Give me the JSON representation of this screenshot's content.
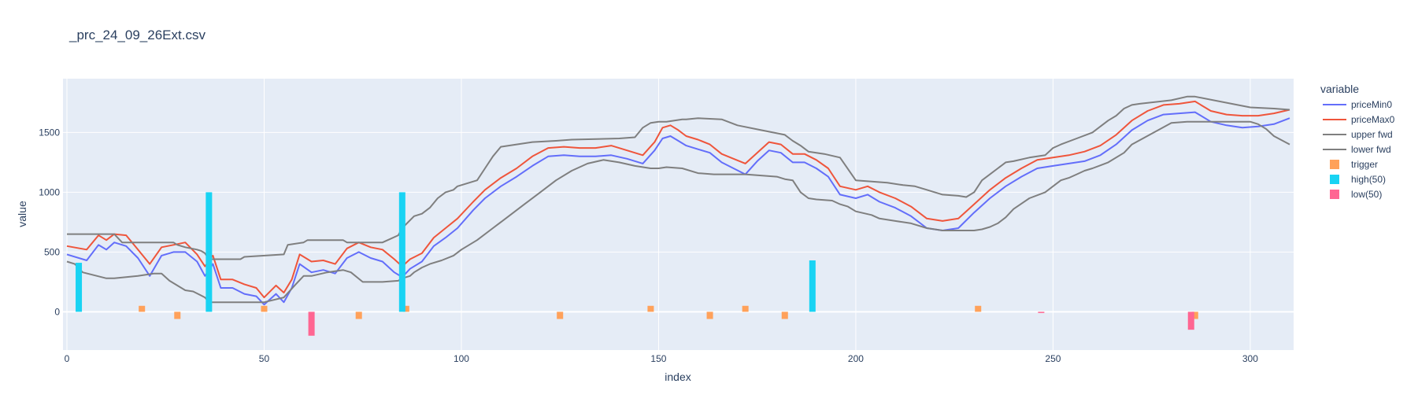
{
  "chart_data": {
    "type": "line",
    "title": "_prc_24_09_26Ext.csv",
    "xlabel": "index",
    "ylabel": "value",
    "xlim": [
      -1,
      311
    ],
    "ylim": [
      -320,
      1950
    ],
    "xticks": [
      0,
      50,
      100,
      150,
      200,
      250,
      300
    ],
    "yticks": [
      0,
      500,
      1000,
      1500
    ],
    "grid": true,
    "legend_title": "variable",
    "legend_position": "right",
    "series": [
      {
        "name": "priceMin0",
        "mark": "line",
        "color": "#636efa",
        "x": [
          0,
          5,
          8,
          10,
          12,
          15,
          18,
          21,
          24,
          27,
          30,
          33,
          35,
          37,
          39,
          42,
          45,
          48,
          50,
          53,
          55,
          57,
          59,
          62,
          65,
          68,
          71,
          74,
          77,
          80,
          83,
          85,
          87,
          90,
          93,
          96,
          99,
          103,
          106,
          110,
          114,
          118,
          122,
          126,
          130,
          134,
          138,
          142,
          146,
          149,
          151,
          153,
          155,
          157,
          160,
          163,
          166,
          169,
          172,
          175,
          178,
          181,
          184,
          187,
          190,
          193,
          196,
          200,
          203,
          206,
          210,
          214,
          218,
          222,
          226,
          230,
          234,
          238,
          242,
          246,
          250,
          254,
          258,
          262,
          266,
          270,
          274,
          278,
          282,
          286,
          290,
          294,
          298,
          302,
          306,
          310
        ],
        "y": [
          480,
          430,
          560,
          520,
          580,
          550,
          450,
          300,
          470,
          500,
          500,
          420,
          300,
          400,
          200,
          200,
          150,
          130,
          60,
          150,
          80,
          200,
          400,
          330,
          350,
          320,
          450,
          500,
          450,
          420,
          330,
          290,
          360,
          420,
          550,
          620,
          700,
          850,
          950,
          1050,
          1130,
          1220,
          1300,
          1310,
          1300,
          1300,
          1310,
          1280,
          1240,
          1350,
          1450,
          1470,
          1430,
          1390,
          1360,
          1330,
          1250,
          1200,
          1150,
          1260,
          1350,
          1330,
          1250,
          1250,
          1200,
          1130,
          980,
          950,
          980,
          920,
          870,
          800,
          700,
          680,
          700,
          830,
          950,
          1050,
          1130,
          1200,
          1220,
          1240,
          1260,
          1310,
          1400,
          1520,
          1600,
          1650,
          1660,
          1670,
          1590,
          1560,
          1540,
          1550,
          1570,
          1620
        ]
      },
      {
        "name": "priceMax0",
        "mark": "line",
        "color": "#ef553b",
        "x": [
          0,
          5,
          8,
          10,
          12,
          15,
          18,
          21,
          24,
          27,
          30,
          33,
          35,
          37,
          39,
          42,
          45,
          48,
          50,
          53,
          55,
          57,
          59,
          62,
          65,
          68,
          71,
          74,
          77,
          80,
          83,
          85,
          87,
          90,
          93,
          96,
          99,
          103,
          106,
          110,
          114,
          118,
          122,
          126,
          130,
          134,
          138,
          142,
          146,
          149,
          151,
          153,
          155,
          157,
          160,
          163,
          166,
          169,
          172,
          175,
          178,
          181,
          184,
          187,
          190,
          193,
          196,
          200,
          203,
          206,
          210,
          214,
          218,
          222,
          226,
          230,
          234,
          238,
          242,
          246,
          250,
          254,
          258,
          262,
          266,
          270,
          274,
          278,
          282,
          286,
          290,
          294,
          298,
          302,
          306,
          310
        ],
        "y": [
          550,
          520,
          640,
          600,
          650,
          640,
          520,
          400,
          540,
          560,
          580,
          480,
          380,
          470,
          270,
          270,
          230,
          200,
          120,
          220,
          160,
          270,
          480,
          420,
          430,
          400,
          530,
          580,
          540,
          520,
          440,
          380,
          440,
          490,
          620,
          700,
          780,
          920,
          1020,
          1120,
          1200,
          1300,
          1370,
          1380,
          1370,
          1370,
          1390,
          1350,
          1310,
          1420,
          1540,
          1560,
          1520,
          1470,
          1440,
          1400,
          1320,
          1280,
          1240,
          1330,
          1420,
          1400,
          1320,
          1320,
          1270,
          1200,
          1050,
          1020,
          1050,
          1000,
          950,
          880,
          780,
          760,
          780,
          900,
          1020,
          1120,
          1200,
          1270,
          1290,
          1310,
          1340,
          1390,
          1480,
          1600,
          1680,
          1730,
          1740,
          1760,
          1680,
          1650,
          1640,
          1640,
          1660,
          1690
        ]
      },
      {
        "name": "upper fwd",
        "mark": "line",
        "color": "#7f7f7f",
        "x": [
          0,
          12,
          14,
          27,
          28,
          30,
          33,
          34,
          35,
          36,
          44,
          45,
          55,
          56,
          60,
          61,
          70,
          71,
          80,
          82,
          84,
          85,
          88,
          90,
          92,
          94,
          96,
          98,
          99,
          100,
          104,
          106,
          108,
          110,
          114,
          116,
          118,
          124,
          128,
          140,
          144,
          146,
          148,
          150,
          152,
          154,
          156,
          157,
          160,
          166,
          170,
          176,
          182,
          184,
          186,
          188,
          192,
          196,
          200,
          204,
          208,
          212,
          215,
          218,
          222,
          226,
          228,
          230,
          232,
          234,
          236,
          238,
          240,
          244,
          248,
          250,
          252,
          256,
          260,
          262,
          264,
          266,
          268,
          270,
          272,
          280,
          284,
          286,
          300,
          306,
          310
        ],
        "y": [
          650,
          650,
          580,
          580,
          560,
          540,
          520,
          510,
          490,
          440,
          440,
          460,
          480,
          560,
          580,
          600,
          600,
          580,
          580,
          610,
          640,
          700,
          800,
          820,
          870,
          950,
          1000,
          1020,
          1050,
          1060,
          1100,
          1200,
          1300,
          1380,
          1400,
          1410,
          1420,
          1430,
          1440,
          1450,
          1460,
          1540,
          1580,
          1590,
          1590,
          1600,
          1610,
          1610,
          1620,
          1610,
          1560,
          1520,
          1480,
          1430,
          1390,
          1340,
          1320,
          1290,
          1100,
          1090,
          1080,
          1060,
          1050,
          1020,
          980,
          970,
          960,
          1000,
          1100,
          1150,
          1200,
          1250,
          1260,
          1290,
          1310,
          1370,
          1400,
          1450,
          1500,
          1550,
          1600,
          1640,
          1700,
          1730,
          1740,
          1770,
          1800,
          1800,
          1710,
          1700,
          1690
        ]
      },
      {
        "name": "lower fwd",
        "mark": "line",
        "color": "#7f7f7f",
        "x": [
          0,
          2,
          4,
          10,
          12,
          18,
          22,
          24,
          26,
          30,
          32,
          35,
          36,
          40,
          50,
          55,
          58,
          60,
          62,
          66,
          68,
          70,
          72,
          75,
          80,
          84,
          85,
          87,
          88,
          90,
          92,
          95,
          98,
          100,
          104,
          108,
          112,
          116,
          120,
          124,
          128,
          132,
          136,
          140,
          144,
          148,
          150,
          152,
          156,
          160,
          164,
          168,
          172,
          176,
          180,
          182,
          184,
          186,
          188,
          190,
          194,
          196,
          198,
          200,
          204,
          206,
          210,
          214,
          218,
          220,
          222,
          224,
          226,
          230,
          232,
          234,
          236,
          238,
          240,
          244,
          248,
          250,
          252,
          254,
          256,
          258,
          260,
          264,
          268,
          270,
          280,
          284,
          290,
          300,
          302,
          304,
          306,
          310
        ],
        "y": [
          420,
          400,
          330,
          280,
          280,
          300,
          320,
          320,
          260,
          180,
          170,
          120,
          80,
          80,
          80,
          120,
          230,
          300,
          300,
          330,
          340,
          350,
          330,
          250,
          250,
          260,
          280,
          300,
          330,
          370,
          400,
          430,
          470,
          520,
          600,
          700,
          800,
          900,
          1000,
          1100,
          1180,
          1240,
          1270,
          1250,
          1220,
          1200,
          1200,
          1210,
          1200,
          1160,
          1150,
          1150,
          1150,
          1140,
          1130,
          1110,
          1100,
          1000,
          950,
          940,
          930,
          900,
          880,
          840,
          810,
          780,
          760,
          740,
          700,
          690,
          680,
          680,
          680,
          680,
          690,
          710,
          740,
          790,
          860,
          950,
          1000,
          1050,
          1100,
          1120,
          1150,
          1180,
          1200,
          1250,
          1330,
          1400,
          1580,
          1590,
          1590,
          1590,
          1570,
          1530,
          1470,
          1400
        ]
      },
      {
        "name": "trigger",
        "mark": "bar",
        "color": "#ffa15a",
        "x": [
          19,
          28,
          50,
          74,
          86,
          125,
          148,
          163,
          172,
          182,
          231,
          286
        ],
        "y": [
          50,
          -60,
          50,
          -60,
          50,
          -60,
          50,
          -60,
          50,
          -60,
          50,
          -60
        ]
      },
      {
        "name": "high(50)",
        "mark": "bar",
        "color": "#19d3f3",
        "x": [
          3,
          36,
          85,
          189
        ],
        "y": [
          410,
          1000,
          1000,
          430
        ]
      },
      {
        "name": "low(50)",
        "mark": "bar",
        "color": "#ff6692",
        "x": [
          62,
          247,
          285
        ],
        "y": [
          -200,
          -10,
          -150
        ]
      }
    ]
  }
}
